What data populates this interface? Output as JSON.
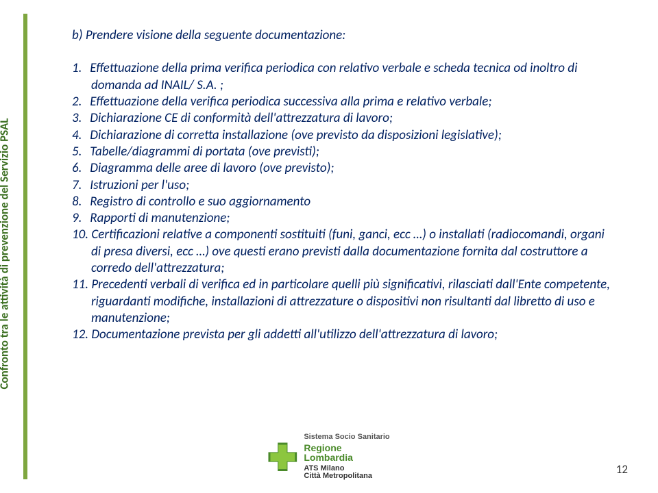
{
  "sidebar": {
    "label": "Confronto tra le attività di prevenzione del Servizio PSAL",
    "bar_color": "#7ea63f",
    "text_color": "#3a6e1f"
  },
  "content": {
    "text_color": "#002060",
    "font_style": "italic",
    "heading": "b)   Prendere visione della seguente documentazione:",
    "items": [
      {
        "num": "1.",
        "text": "Effettuazione  della prima verifica periodica con relativo verbale e scheda tecnica  od inoltro di domanda ad INAIL/ S.A. ;"
      },
      {
        "num": "2.",
        "text": "Effettuazione della verifica periodica successiva alla prima e relativo verbale;"
      },
      {
        "num": "3.",
        "text": "Dichiarazione CE di conformità dell'attrezzatura di lavoro;"
      },
      {
        "num": "4.",
        "text": "Dichiarazione di  corretta installazione (ove previsto da disposizioni legislative);"
      },
      {
        "num": "5.",
        "text": "Tabelle/diagrammi di portata (ove previsti);"
      },
      {
        "num": "6.",
        "text": "Diagramma delle aree di lavoro (ove previsto);"
      },
      {
        "num": "7.",
        "text": "Istruzioni per l'uso;"
      },
      {
        "num": "8.",
        "text": "Registro di controllo e suo aggiornamento"
      },
      {
        "num": "9.",
        "text": "Rapporti di manutenzione;"
      },
      {
        "num": "10.",
        "text": "Certificazioni relative a componenti sostituiti (funi, ganci, ecc …) o installati (radiocomandi, organi di presa diversi, ecc …)   ove questi erano previsti dalla documentazione fornita dal costruttore a corredo dell'attrezzatura;"
      },
      {
        "num": "11.",
        "text": "Precedenti verbali di verifica ed in particolare quelli più significativi, rilasciati dall'Ente competente, riguardanti modifiche, installazioni di attrezzature o dispositivi non risultanti dal libretto di uso e manutenzione;"
      },
      {
        "num": "12.",
        "text": "Documentazione prevista per gli addetti all'utilizzo dell'attrezzatura di lavoro;"
      }
    ]
  },
  "footer": {
    "line1": "Sistema Socio Sanitario",
    "line2": "Regione",
    "line3": "Lombardia",
    "line4": "ATS Milano",
    "line5": "Città Metropolitana"
  },
  "page_number": "12"
}
